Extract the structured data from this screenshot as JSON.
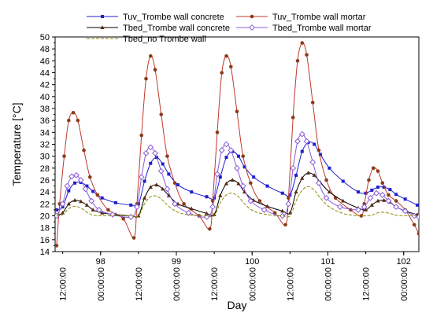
{
  "chart_data": {
    "type": "line",
    "xlabel": "Day",
    "ylabel": "Temperature [°C]",
    "xlim": [
      97.4,
      102.2
    ],
    "ylim": [
      14,
      50
    ],
    "y_ticks": [
      14,
      16,
      18,
      20,
      22,
      24,
      26,
      28,
      30,
      32,
      34,
      36,
      38,
      40,
      42,
      44,
      46,
      48,
      50
    ],
    "x_day_ticks": [
      {
        "x": 98,
        "label": "98"
      },
      {
        "x": 99,
        "label": "99"
      },
      {
        "x": 100,
        "label": "100"
      },
      {
        "x": 101,
        "label": "101"
      },
      {
        "x": 102,
        "label": "102"
      }
    ],
    "x_time_ticks": [
      {
        "x": 97.5,
        "label": "12:00:00"
      },
      {
        "x": 98.0,
        "label": "00:00:00"
      },
      {
        "x": 98.5,
        "label": "12:00:00"
      },
      {
        "x": 99.0,
        "label": "00:00:00"
      },
      {
        "x": 99.5,
        "label": "12:00:00"
      },
      {
        "x": 100.0,
        "label": "00:00:00"
      },
      {
        "x": 100.5,
        "label": "12:00:00"
      },
      {
        "x": 101.0,
        "label": "00:00:00"
      },
      {
        "x": 101.5,
        "label": "12:00:00"
      },
      {
        "x": 102.0,
        "label": "00:00:00"
      }
    ],
    "legend_position": "top",
    "series": [
      {
        "name": "Tuv_Trombe wall concrete",
        "color": "#1f1fd0",
        "marker": "square",
        "dash": "solid",
        "x": [
          97.42,
          97.5,
          97.58,
          97.66,
          97.74,
          97.82,
          97.9,
          98.02,
          98.2,
          98.4,
          98.5,
          98.58,
          98.66,
          98.74,
          98.82,
          98.9,
          99.02,
          99.2,
          99.4,
          99.5,
          99.58,
          99.66,
          99.74,
          99.82,
          99.9,
          100.02,
          100.2,
          100.4,
          100.5,
          100.58,
          100.66,
          100.74,
          100.82,
          100.9,
          101.02,
          101.2,
          101.4,
          101.5,
          101.58,
          101.66,
          101.74,
          101.82,
          101.9,
          102.02,
          102.18
        ],
        "y": [
          21.0,
          21.5,
          24.2,
          25.5,
          25.6,
          25.0,
          24.1,
          23.0,
          22.2,
          21.8,
          22.0,
          25.8,
          28.8,
          29.8,
          28.7,
          27.0,
          25.2,
          24.0,
          23.2,
          23.0,
          26.5,
          29.8,
          30.8,
          30.0,
          28.2,
          26.5,
          25.0,
          23.8,
          23.5,
          26.8,
          30.8,
          32.3,
          32.0,
          30.3,
          28.0,
          25.8,
          24.0,
          23.8,
          24.3,
          24.8,
          24.8,
          24.4,
          23.6,
          22.8,
          21.8
        ]
      },
      {
        "name": "Tuv_Trombe wall mortar",
        "color": "#c0392b",
        "marker": "circle",
        "dash": "solid",
        "x": [
          97.42,
          97.46,
          97.52,
          97.58,
          97.64,
          97.7,
          97.78,
          97.86,
          97.96,
          98.1,
          98.3,
          98.44,
          98.48,
          98.54,
          98.6,
          98.66,
          98.72,
          98.8,
          98.88,
          98.98,
          99.1,
          99.3,
          99.44,
          99.48,
          99.54,
          99.6,
          99.66,
          99.72,
          99.8,
          99.88,
          99.98,
          100.1,
          100.3,
          100.44,
          100.48,
          100.54,
          100.6,
          100.66,
          100.72,
          100.8,
          100.88,
          100.98,
          101.1,
          101.3,
          101.44,
          101.48,
          101.54,
          101.6,
          101.66,
          101.72,
          101.8,
          101.9,
          102.02,
          102.14,
          102.2
        ],
        "y": [
          15.0,
          22.0,
          30.0,
          36.0,
          37.3,
          36.0,
          31.0,
          26.5,
          23.5,
          21.0,
          19.5,
          16.3,
          22.0,
          33.5,
          43.0,
          46.8,
          44.5,
          37.0,
          30.0,
          25.5,
          22.0,
          20.0,
          17.8,
          22.5,
          34.0,
          44.0,
          46.8,
          45.0,
          37.5,
          30.0,
          25.5,
          22.5,
          20.5,
          18.5,
          23.0,
          36.5,
          46.0,
          49.0,
          47.0,
          39.0,
          31.0,
          26.0,
          23.0,
          21.0,
          20.0,
          22.0,
          26.0,
          28.0,
          27.5,
          25.5,
          23.5,
          22.5,
          21.0,
          18.5,
          17.0
        ]
      },
      {
        "name": "Tbed_Trombe wall concrete",
        "color": "#000000",
        "marker": "triangle",
        "dash": "solid",
        "x": [
          97.42,
          97.5,
          97.58,
          97.66,
          97.74,
          97.82,
          97.9,
          98.02,
          98.2,
          98.4,
          98.5,
          98.58,
          98.66,
          98.74,
          98.82,
          98.9,
          99.02,
          99.2,
          99.4,
          99.5,
          99.58,
          99.66,
          99.74,
          99.82,
          99.9,
          100.02,
          100.2,
          100.4,
          100.5,
          100.58,
          100.66,
          100.74,
          100.82,
          100.9,
          101.02,
          101.2,
          101.4,
          101.5,
          101.58,
          101.66,
          101.74,
          101.82,
          101.9,
          102.02,
          102.18
        ],
        "y": [
          20.0,
          20.5,
          22.0,
          22.6,
          22.4,
          21.8,
          21.0,
          20.5,
          20.2,
          20.0,
          20.0,
          23.0,
          24.8,
          25.2,
          24.5,
          23.4,
          22.0,
          21.2,
          20.4,
          20.2,
          23.4,
          25.4,
          26.0,
          25.4,
          24.0,
          22.6,
          21.6,
          20.8,
          20.5,
          24.0,
          26.3,
          27.2,
          26.8,
          25.6,
          24.0,
          22.5,
          21.3,
          21.0,
          21.8,
          22.5,
          22.6,
          22.3,
          21.5,
          20.8,
          20.2
        ]
      },
      {
        "name": "Tbed_Trombe wall mortar",
        "color": "#8a5cd8",
        "marker": "diamond",
        "dash": "solid",
        "x": [
          97.42,
          97.5,
          97.56,
          97.62,
          97.68,
          97.74,
          97.8,
          97.88,
          97.98,
          98.16,
          98.4,
          98.48,
          98.54,
          98.6,
          98.66,
          98.72,
          98.8,
          98.88,
          98.98,
          99.16,
          99.4,
          99.48,
          99.54,
          99.6,
          99.66,
          99.72,
          99.8,
          99.88,
          99.98,
          100.16,
          100.4,
          100.48,
          100.54,
          100.6,
          100.66,
          100.72,
          100.8,
          100.88,
          100.98,
          101.16,
          101.4,
          101.48,
          101.56,
          101.64,
          101.72,
          101.8,
          101.9,
          102.02,
          102.14,
          102.2
        ],
        "y": [
          20.0,
          22.0,
          25.0,
          26.6,
          26.8,
          26.0,
          24.5,
          22.5,
          21.0,
          20.2,
          19.8,
          21.5,
          26.5,
          30.5,
          31.5,
          30.5,
          27.5,
          24.5,
          22.0,
          20.5,
          19.8,
          21.5,
          27.0,
          31.0,
          32.0,
          31.0,
          28.0,
          25.0,
          22.5,
          21.0,
          20.0,
          22.0,
          28.0,
          32.5,
          33.7,
          32.5,
          29.0,
          25.5,
          23.0,
          21.5,
          21.0,
          21.5,
          23.0,
          23.8,
          23.5,
          22.5,
          21.5,
          20.8,
          20.0,
          19.8
        ]
      },
      {
        "name": "Tbed_no Trombe wall",
        "color": "#8a8a00",
        "marker": "none",
        "dash": "dashed",
        "x": [
          97.42,
          97.5,
          97.58,
          97.66,
          97.74,
          97.82,
          97.9,
          98.02,
          98.2,
          98.4,
          98.5,
          98.58,
          98.66,
          98.74,
          98.82,
          98.9,
          99.02,
          99.2,
          99.4,
          99.5,
          99.58,
          99.66,
          99.74,
          99.82,
          99.9,
          100.02,
          100.2,
          100.4,
          100.5,
          100.58,
          100.66,
          100.74,
          100.82,
          100.9,
          101.02,
          101.2,
          101.4,
          101.5,
          101.58,
          101.66,
          101.74,
          101.82,
          101.9,
          102.02,
          102.18
        ],
        "y": [
          20.0,
          20.2,
          21.2,
          21.6,
          21.3,
          20.6,
          20.1,
          20.0,
          20.0,
          20.0,
          20.0,
          22.0,
          23.2,
          23.3,
          22.6,
          21.6,
          20.6,
          20.1,
          20.0,
          20.0,
          22.2,
          23.5,
          23.8,
          23.2,
          22.0,
          20.8,
          20.2,
          20.0,
          20.0,
          22.5,
          24.3,
          24.9,
          24.3,
          23.0,
          21.5,
          20.4,
          20.0,
          20.0,
          20.1,
          20.5,
          20.6,
          20.4,
          20.1,
          20.0,
          20.0
        ]
      }
    ]
  }
}
